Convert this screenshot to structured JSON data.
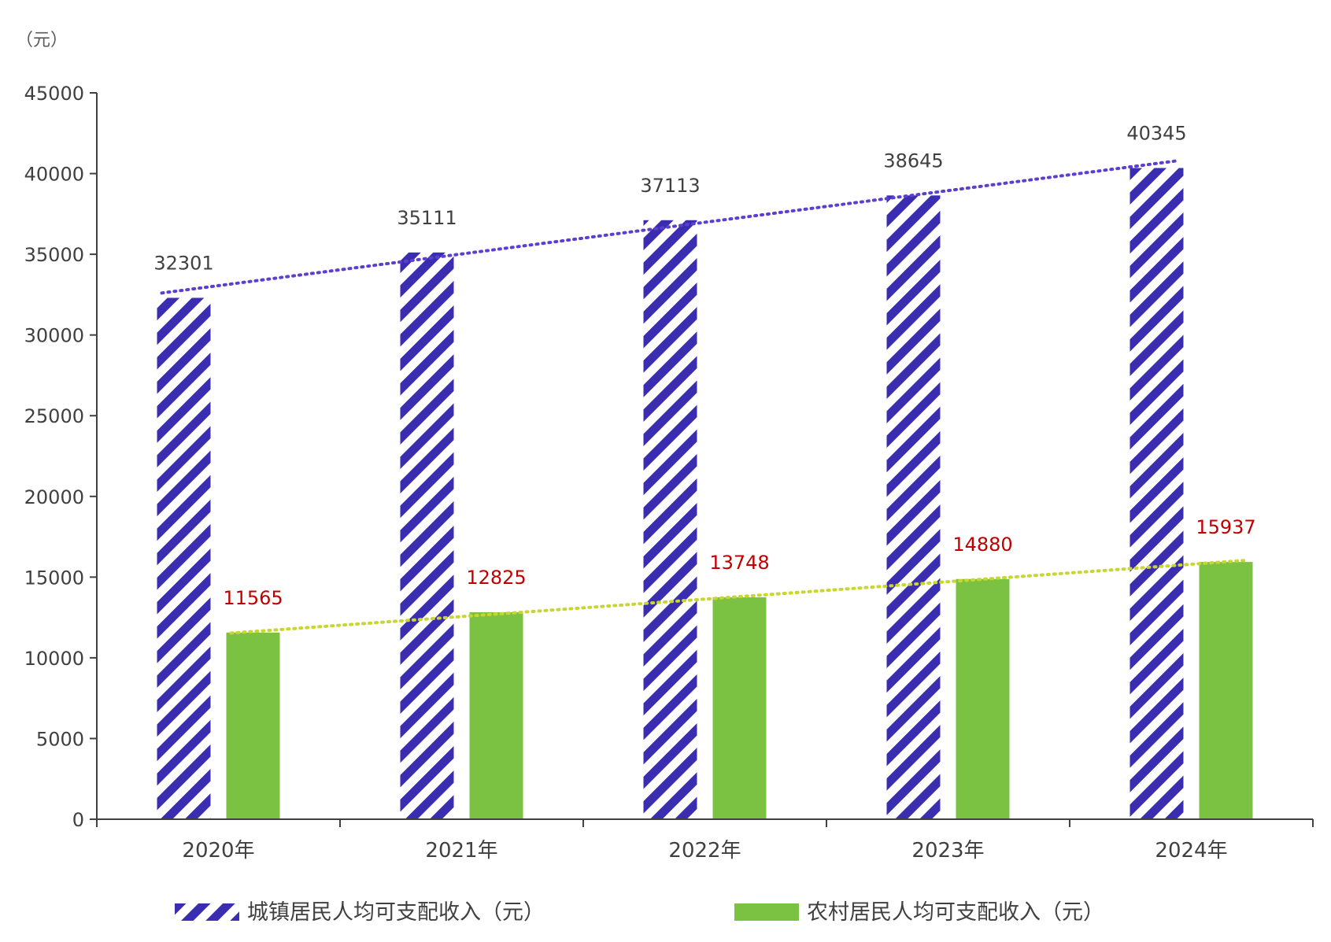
{
  "chart_data": {
    "type": "bar",
    "unit_label": "（元）",
    "categories": [
      "2020年",
      "2021年",
      "2022年",
      "2023年",
      "2024年"
    ],
    "series": [
      {
        "name": "城镇居民人均可支配收入（元）",
        "values": [
          32301,
          35111,
          37113,
          38645,
          40345
        ],
        "color": "#3b2db0",
        "pattern": "diagonal-stripes",
        "label_color": "#404040"
      },
      {
        "name": "农村居民人均可支配收入（元）",
        "values": [
          11565,
          12825,
          13748,
          14880,
          15937
        ],
        "color": "#7cc242",
        "pattern": "solid",
        "label_color": "#c00000"
      }
    ],
    "trendlines": [
      {
        "series": "城镇居民人均可支配收入（元）",
        "style": "dotted",
        "color": "#5b3fd0"
      },
      {
        "series": "农村居民人均可支配收入（元）",
        "style": "dotted",
        "color": "#c8d630"
      }
    ],
    "ylim": [
      0,
      45000
    ],
    "yticks": [
      0,
      5000,
      10000,
      15000,
      20000,
      25000,
      30000,
      35000,
      40000,
      45000
    ],
    "grid": false,
    "legend": "bottom"
  }
}
